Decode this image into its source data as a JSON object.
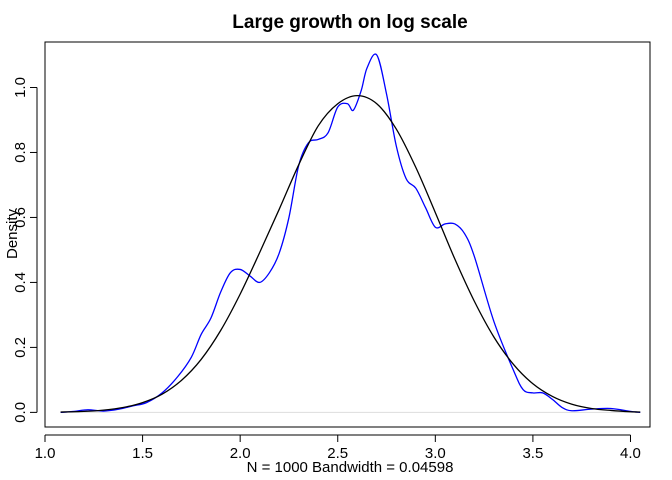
{
  "chart_data": {
    "type": "line",
    "title": "Large growth on log scale",
    "xlabel": "N = 1000   Bandwidth = 0.04598",
    "ylabel": "Density",
    "xlim": [
      1.0,
      4.1
    ],
    "ylim": [
      -0.045,
      1.14
    ],
    "x_ticks": [
      1.0,
      1.5,
      2.0,
      2.5,
      3.0,
      3.5,
      4.0
    ],
    "x_tick_labels": [
      "1.0",
      "1.5",
      "2.0",
      "2.5",
      "3.0",
      "3.5",
      "4.0"
    ],
    "y_ticks": [
      0.0,
      0.2,
      0.4,
      0.6,
      0.8,
      1.0
    ],
    "y_tick_labels": [
      "0.0",
      "0.2",
      "0.4",
      "0.6",
      "0.8",
      "1.0"
    ],
    "baseline": 0.0,
    "baseline_color": "#dddddd",
    "grid": false,
    "legend": "none",
    "series": [
      {
        "color": "#0000ff",
        "x": [
          1.08,
          1.15,
          1.22,
          1.3,
          1.38,
          1.45,
          1.52,
          1.6,
          1.68,
          1.75,
          1.8,
          1.85,
          1.9,
          1.95,
          2.0,
          2.05,
          2.1,
          2.15,
          2.2,
          2.25,
          2.3,
          2.35,
          2.4,
          2.45,
          2.5,
          2.55,
          2.58,
          2.62,
          2.65,
          2.7,
          2.75,
          2.8,
          2.85,
          2.9,
          2.95,
          3.0,
          3.05,
          3.1,
          3.15,
          3.2,
          3.3,
          3.4,
          3.45,
          3.5,
          3.55,
          3.6,
          3.65,
          3.7,
          3.8,
          3.9,
          4.0,
          4.05
        ],
        "y": [
          0.0,
          0.003,
          0.008,
          0.004,
          0.01,
          0.02,
          0.03,
          0.06,
          0.11,
          0.17,
          0.24,
          0.29,
          0.37,
          0.43,
          0.44,
          0.42,
          0.4,
          0.43,
          0.49,
          0.6,
          0.76,
          0.83,
          0.84,
          0.86,
          0.94,
          0.95,
          0.93,
          0.99,
          1.06,
          1.1,
          0.98,
          0.82,
          0.72,
          0.69,
          0.63,
          0.57,
          0.58,
          0.58,
          0.55,
          0.48,
          0.28,
          0.13,
          0.07,
          0.06,
          0.06,
          0.04,
          0.015,
          0.005,
          0.01,
          0.012,
          0.003,
          0.0
        ]
      },
      {
        "color": "#000000",
        "x": [
          1.08,
          1.2,
          1.3,
          1.4,
          1.5,
          1.6,
          1.7,
          1.8,
          1.9,
          2.0,
          2.1,
          2.2,
          2.3,
          2.4,
          2.5,
          2.6,
          2.7,
          2.8,
          2.9,
          3.0,
          3.1,
          3.2,
          3.3,
          3.4,
          3.5,
          3.6,
          3.7,
          3.8,
          3.9,
          4.0,
          4.05
        ],
        "y": [
          0.001,
          0.003,
          0.007,
          0.015,
          0.03,
          0.056,
          0.099,
          0.163,
          0.252,
          0.364,
          0.492,
          0.625,
          0.762,
          0.882,
          0.95,
          0.975,
          0.95,
          0.872,
          0.754,
          0.615,
          0.472,
          0.342,
          0.232,
          0.148,
          0.088,
          0.049,
          0.025,
          0.012,
          0.006,
          0.002,
          0.001
        ]
      }
    ]
  }
}
